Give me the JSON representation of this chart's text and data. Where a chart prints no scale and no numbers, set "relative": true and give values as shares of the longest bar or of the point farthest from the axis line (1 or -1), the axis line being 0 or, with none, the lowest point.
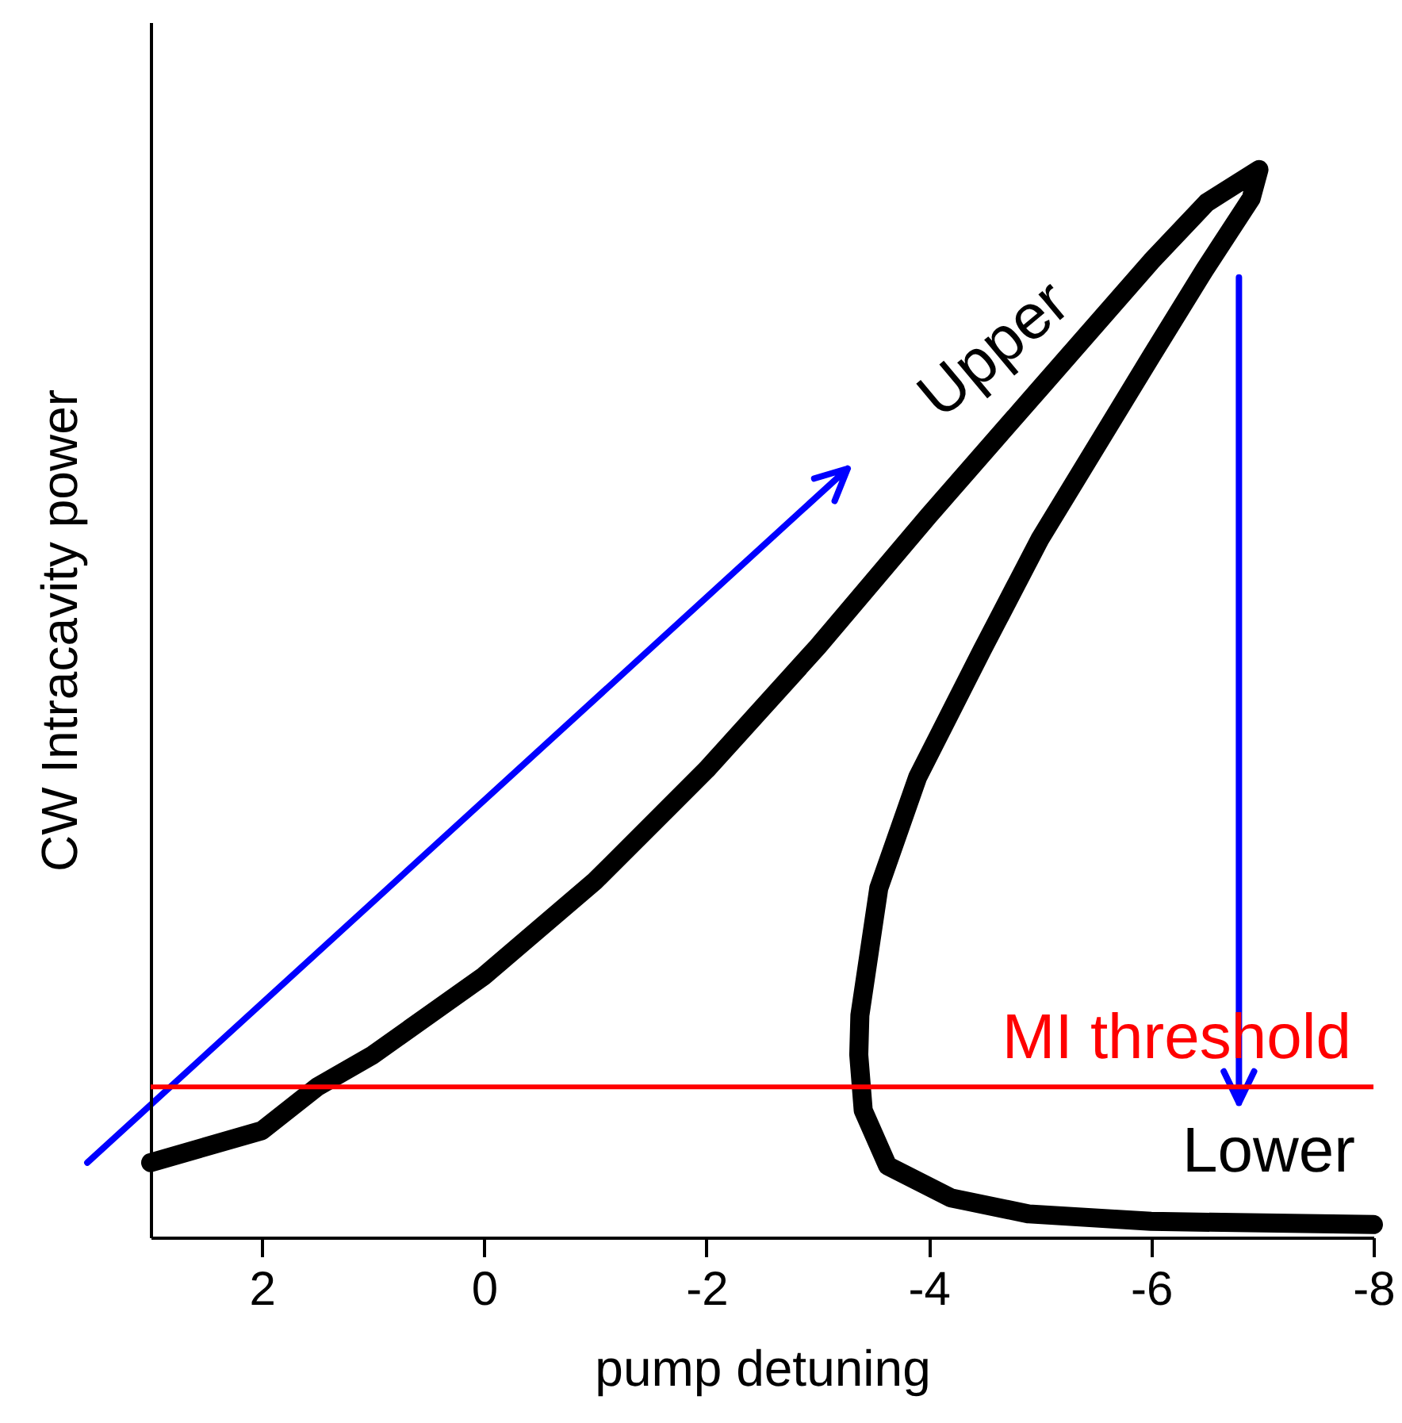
{
  "chart_data": {
    "type": "line",
    "xlabel": "pump detuning",
    "ylabel": "CW Intracavity power",
    "relative": true,
    "xlim": [
      3,
      -8
    ],
    "xticks": [
      2,
      0,
      -2,
      -4,
      -6,
      -8
    ],
    "series": [
      {
        "color": "#000000",
        "x": [
          3.0,
          2,
          1.5,
          1,
          0,
          -1,
          -2,
          -3,
          -4,
          -5,
          -6,
          -6.5,
          -6.97,
          -6.9,
          -6.48,
          -6,
          -5,
          -4.48,
          -3.9,
          -3.55,
          -3.38,
          -3.37,
          -3.41,
          -3.63,
          -4.2,
          -4.9,
          -6,
          -8
        ],
        "values": [
          0.07,
          0.1,
          0.141,
          0.171,
          0.245,
          0.334,
          0.438,
          0.553,
          0.676,
          0.795,
          0.914,
          0.969,
          1.0,
          0.973,
          0.906,
          0.825,
          0.654,
          0.55,
          0.431,
          0.327,
          0.208,
          0.171,
          0.119,
          0.067,
          0.037,
          0.022,
          0.015,
          0.012
        ]
      }
    ],
    "ref_lines": [
      {
        "axis": "y",
        "value": 0.141,
        "label": "MI threshold",
        "color": "#ff0000"
      }
    ],
    "annotations": [
      "Upper",
      "Lower"
    ]
  }
}
